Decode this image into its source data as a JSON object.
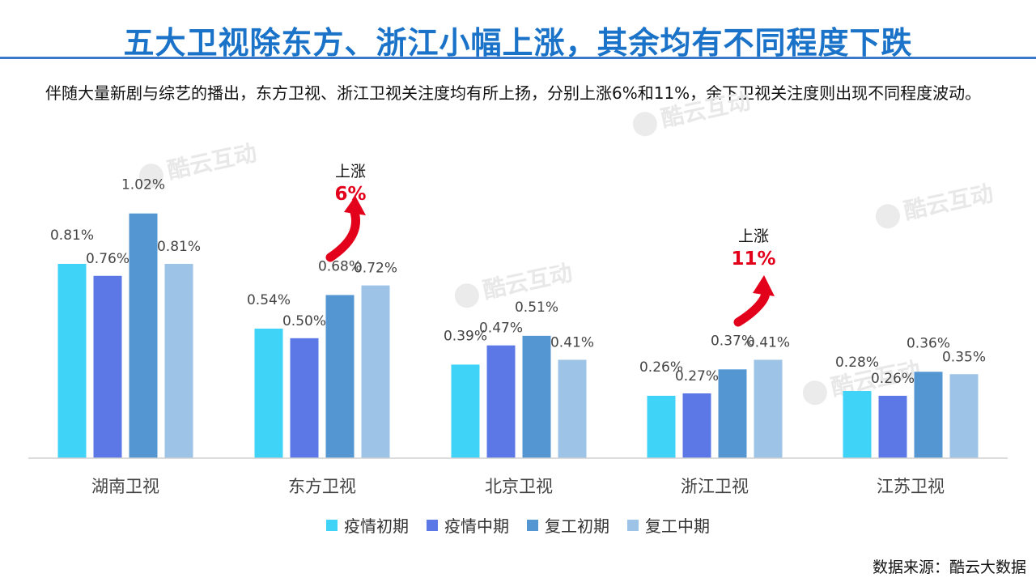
{
  "title": "五大卫视除东方、浙江小幅上涨，其余均有不同程度下跌",
  "subtitle": "伴随大量新剧与综艺的播出，东方卫视、浙江卫视关注度均有所上扬，分别上涨6%和11%，余下卫视关注度则出现不同程度波动。",
  "source": "数据来源：酷云大数据",
  "watermark": "酷云互动",
  "annotations": [
    {
      "label": "上涨",
      "value": "6%",
      "category": "东方卫视"
    },
    {
      "label": "上涨",
      "value": "11%",
      "category": "浙江卫视"
    }
  ],
  "colors": {
    "title": "#1a73c8",
    "accent_red": "#e3001b",
    "series": [
      "#3fd3f7",
      "#5b78e6",
      "#5496d2",
      "#9dc3e6"
    ]
  },
  "chart_data": {
    "type": "bar",
    "categories": [
      "湖南卫视",
      "东方卫视",
      "北京卫视",
      "浙江卫视",
      "江苏卫视"
    ],
    "series": [
      {
        "name": "疫情初期",
        "values": [
          0.81,
          0.54,
          0.39,
          0.26,
          0.28
        ],
        "labels": [
          "0.81%",
          "0.54%",
          "0.39%",
          "0.26%",
          "0.28%"
        ]
      },
      {
        "name": "疫情中期",
        "values": [
          0.76,
          0.5,
          0.47,
          0.27,
          0.26
        ],
        "labels": [
          "0.76%",
          "0.50%",
          "0.47%",
          "0.27%",
          "0.26%"
        ]
      },
      {
        "name": "复工初期",
        "values": [
          1.02,
          0.68,
          0.51,
          0.37,
          0.36
        ],
        "labels": [
          "1.02%",
          "0.68%",
          "0.51%",
          "0.37%",
          "0.36%"
        ]
      },
      {
        "name": "复工中期",
        "values": [
          0.81,
          0.72,
          0.41,
          0.41,
          0.35
        ],
        "labels": [
          "0.81%",
          "0.72%",
          "0.41%",
          "0.41%",
          "0.35%"
        ]
      }
    ],
    "ylim": [
      0,
      1.1
    ],
    "grid": false,
    "legend_position": "bottom"
  }
}
